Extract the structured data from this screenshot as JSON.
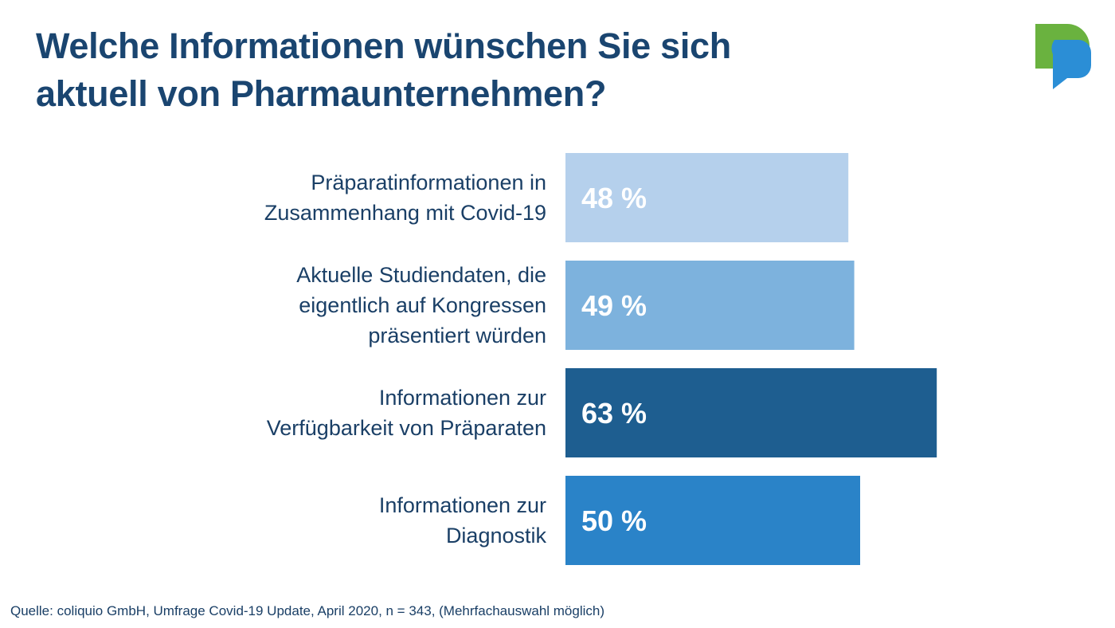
{
  "title_lines": [
    "Welche Informationen wünschen Sie sich",
    "aktuell von Pharmaunternehmen?"
  ],
  "source": "Quelle: coliquio GmbH, Umfrage Covid-19 Update, April 2020, n = 343, (Mehrfachauswahl möglich)",
  "logo": {
    "icon": "speech-bubble-logo-icon",
    "colors": {
      "green": "#6ab23f",
      "blue": "#2b8ed6"
    }
  },
  "chart_data": {
    "type": "bar",
    "orientation": "horizontal",
    "categories": [
      [
        "Präparatinformationen in",
        "Zusammenhang mit Covid-19"
      ],
      [
        "Aktuelle Studiendaten, die",
        "eigentlich auf Kongressen",
        "präsentiert würden"
      ],
      [
        "Informationen zur",
        "Verfügbarkeit von Präparaten"
      ],
      [
        "Informationen zur",
        "Diagnostik"
      ]
    ],
    "values": [
      48,
      49,
      63,
      50
    ],
    "value_labels": [
      "48 %",
      "49 %",
      "63 %",
      "50 %"
    ],
    "unit": "%",
    "colors": [
      "#b5d0ec",
      "#7db2dd",
      "#1e5e90",
      "#2a83c8"
    ],
    "label_color": "#1a3f66",
    "value_label_color": "#ffffff",
    "xlim": [
      0,
      100
    ],
    "grid": false,
    "legend": "none"
  }
}
